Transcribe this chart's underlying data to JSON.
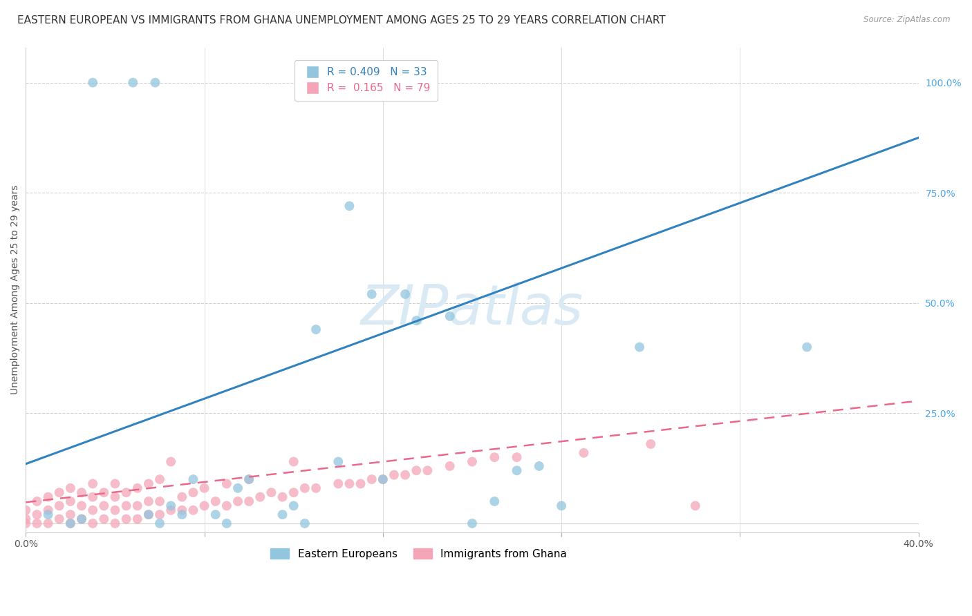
{
  "title": "EASTERN EUROPEAN VS IMMIGRANTS FROM GHANA UNEMPLOYMENT AMONG AGES 25 TO 29 YEARS CORRELATION CHART",
  "source": "Source: ZipAtlas.com",
  "ylabel": "Unemployment Among Ages 25 to 29 years",
  "xlim": [
    0.0,
    0.4
  ],
  "ylim": [
    -0.02,
    1.08
  ],
  "xticks": [
    0.0,
    0.08,
    0.16,
    0.24,
    0.32,
    0.4
  ],
  "xticklabels": [
    "0.0%",
    "",
    "",
    "",
    "",
    "40.0%"
  ],
  "yticks_right": [
    0.25,
    0.5,
    0.75,
    1.0
  ],
  "ytick_right_labels": [
    "25.0%",
    "50.0%",
    "75.0%",
    "100.0%"
  ],
  "blue_R": 0.409,
  "blue_N": 33,
  "pink_R": 0.165,
  "pink_N": 79,
  "blue_color": "#92c5de",
  "pink_color": "#f4a6b8",
  "blue_line_color": "#3182bd",
  "pink_line_color": "#e8698a",
  "blue_line_intercept": 0.135,
  "blue_line_slope": 1.85,
  "pink_line_intercept": 0.048,
  "pink_line_slope": 0.575,
  "blue_scatter_x": [
    0.03,
    0.048,
    0.058,
    0.145,
    0.155,
    0.17,
    0.175,
    0.19,
    0.13,
    0.275,
    0.01,
    0.02,
    0.025,
    0.055,
    0.06,
    0.065,
    0.07,
    0.075,
    0.085,
    0.09,
    0.095,
    0.1,
    0.115,
    0.12,
    0.125,
    0.14,
    0.16,
    0.2,
    0.21,
    0.22,
    0.23,
    0.24,
    0.35
  ],
  "blue_scatter_y": [
    1.0,
    1.0,
    1.0,
    0.72,
    0.52,
    0.52,
    0.46,
    0.47,
    0.44,
    0.4,
    0.02,
    0.0,
    0.01,
    0.02,
    0.0,
    0.04,
    0.02,
    0.1,
    0.02,
    0.0,
    0.08,
    0.1,
    0.02,
    0.04,
    0.0,
    0.14,
    0.1,
    0.0,
    0.05,
    0.12,
    0.13,
    0.04,
    0.4
  ],
  "pink_scatter_x": [
    0.0,
    0.0,
    0.0,
    0.005,
    0.005,
    0.005,
    0.01,
    0.01,
    0.01,
    0.015,
    0.015,
    0.015,
    0.02,
    0.02,
    0.02,
    0.02,
    0.025,
    0.025,
    0.025,
    0.03,
    0.03,
    0.03,
    0.03,
    0.035,
    0.035,
    0.035,
    0.04,
    0.04,
    0.04,
    0.04,
    0.045,
    0.045,
    0.045,
    0.05,
    0.05,
    0.05,
    0.055,
    0.055,
    0.055,
    0.06,
    0.06,
    0.06,
    0.065,
    0.065,
    0.07,
    0.07,
    0.075,
    0.075,
    0.08,
    0.08,
    0.085,
    0.09,
    0.09,
    0.095,
    0.1,
    0.1,
    0.105,
    0.11,
    0.115,
    0.12,
    0.12,
    0.125,
    0.13,
    0.14,
    0.145,
    0.15,
    0.155,
    0.16,
    0.165,
    0.17,
    0.175,
    0.18,
    0.19,
    0.2,
    0.21,
    0.22,
    0.25,
    0.28,
    0.3
  ],
  "pink_scatter_y": [
    0.0,
    0.01,
    0.03,
    0.0,
    0.02,
    0.05,
    0.0,
    0.03,
    0.06,
    0.01,
    0.04,
    0.07,
    0.0,
    0.02,
    0.05,
    0.08,
    0.01,
    0.04,
    0.07,
    0.0,
    0.03,
    0.06,
    0.09,
    0.01,
    0.04,
    0.07,
    0.0,
    0.03,
    0.06,
    0.09,
    0.01,
    0.04,
    0.07,
    0.01,
    0.04,
    0.08,
    0.02,
    0.05,
    0.09,
    0.02,
    0.05,
    0.1,
    0.03,
    0.14,
    0.03,
    0.06,
    0.03,
    0.07,
    0.04,
    0.08,
    0.05,
    0.04,
    0.09,
    0.05,
    0.05,
    0.1,
    0.06,
    0.07,
    0.06,
    0.07,
    0.14,
    0.08,
    0.08,
    0.09,
    0.09,
    0.09,
    0.1,
    0.1,
    0.11,
    0.11,
    0.12,
    0.12,
    0.13,
    0.14,
    0.15,
    0.15,
    0.16,
    0.18,
    0.04
  ],
  "watermark_text": "ZIPatlas",
  "watermark_color": "#daeaf5",
  "background_color": "#ffffff",
  "grid_color": "#d0d0d0",
  "title_fontsize": 11,
  "axis_label_fontsize": 10,
  "tick_fontsize": 10,
  "legend_fontsize": 11,
  "right_tick_color": "#4da6e8",
  "legend_blue_label": "R = 0.409   N = 33",
  "legend_pink_label": "R =  0.165   N = 79",
  "bottom_legend_blue": "Eastern Europeans",
  "bottom_legend_pink": "Immigrants from Ghana"
}
